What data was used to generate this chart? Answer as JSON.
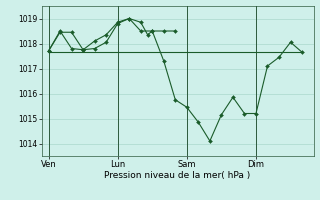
{
  "xlabel": "Pression niveau de la mer( hPa )",
  "bg_color": "#cff0ea",
  "grid_color": "#aad8cc",
  "line_color": "#1a5c2a",
  "marker_color": "#1a5c2a",
  "ylim": [
    1013.5,
    1019.5
  ],
  "yticks": [
    1014,
    1015,
    1016,
    1017,
    1018,
    1019
  ],
  "xtick_labels": [
    "Ven",
    "Lun",
    "Sam",
    "Dim"
  ],
  "xtick_positions": [
    0,
    3,
    6,
    9
  ],
  "vline_positions": [
    0,
    3,
    6,
    9
  ],
  "hline_y": 1017.65,
  "hline_x_start": 0.0,
  "hline_x_end": 11.0,
  "xlim": [
    -0.3,
    11.5
  ],
  "main_x": [
    0.0,
    0.5,
    1.0,
    1.5,
    2.0,
    2.5,
    3.0,
    3.5,
    4.0,
    4.5,
    5.0,
    5.5,
    6.0,
    6.5,
    7.0,
    7.5,
    8.0,
    8.5,
    9.0,
    9.5,
    10.0,
    10.5,
    11.0
  ],
  "main_y": [
    1017.7,
    1018.5,
    1017.8,
    1017.75,
    1018.1,
    1018.35,
    1018.85,
    1019.0,
    1018.5,
    1018.5,
    1017.3,
    1015.75,
    1015.45,
    1014.85,
    1014.1,
    1015.15,
    1015.85,
    1015.2,
    1015.2,
    1017.1,
    1017.45,
    1018.05,
    1017.65
  ],
  "sec_x": [
    0.0,
    0.5,
    1.0,
    1.5,
    2.0,
    2.5,
    3.0,
    3.5,
    4.0,
    4.3,
    4.5,
    5.0,
    5.5
  ],
  "sec_y": [
    1017.7,
    1018.45,
    1018.45,
    1017.75,
    1017.8,
    1018.05,
    1018.8,
    1019.0,
    1018.85,
    1018.35,
    1018.5,
    1018.5,
    1018.5
  ]
}
